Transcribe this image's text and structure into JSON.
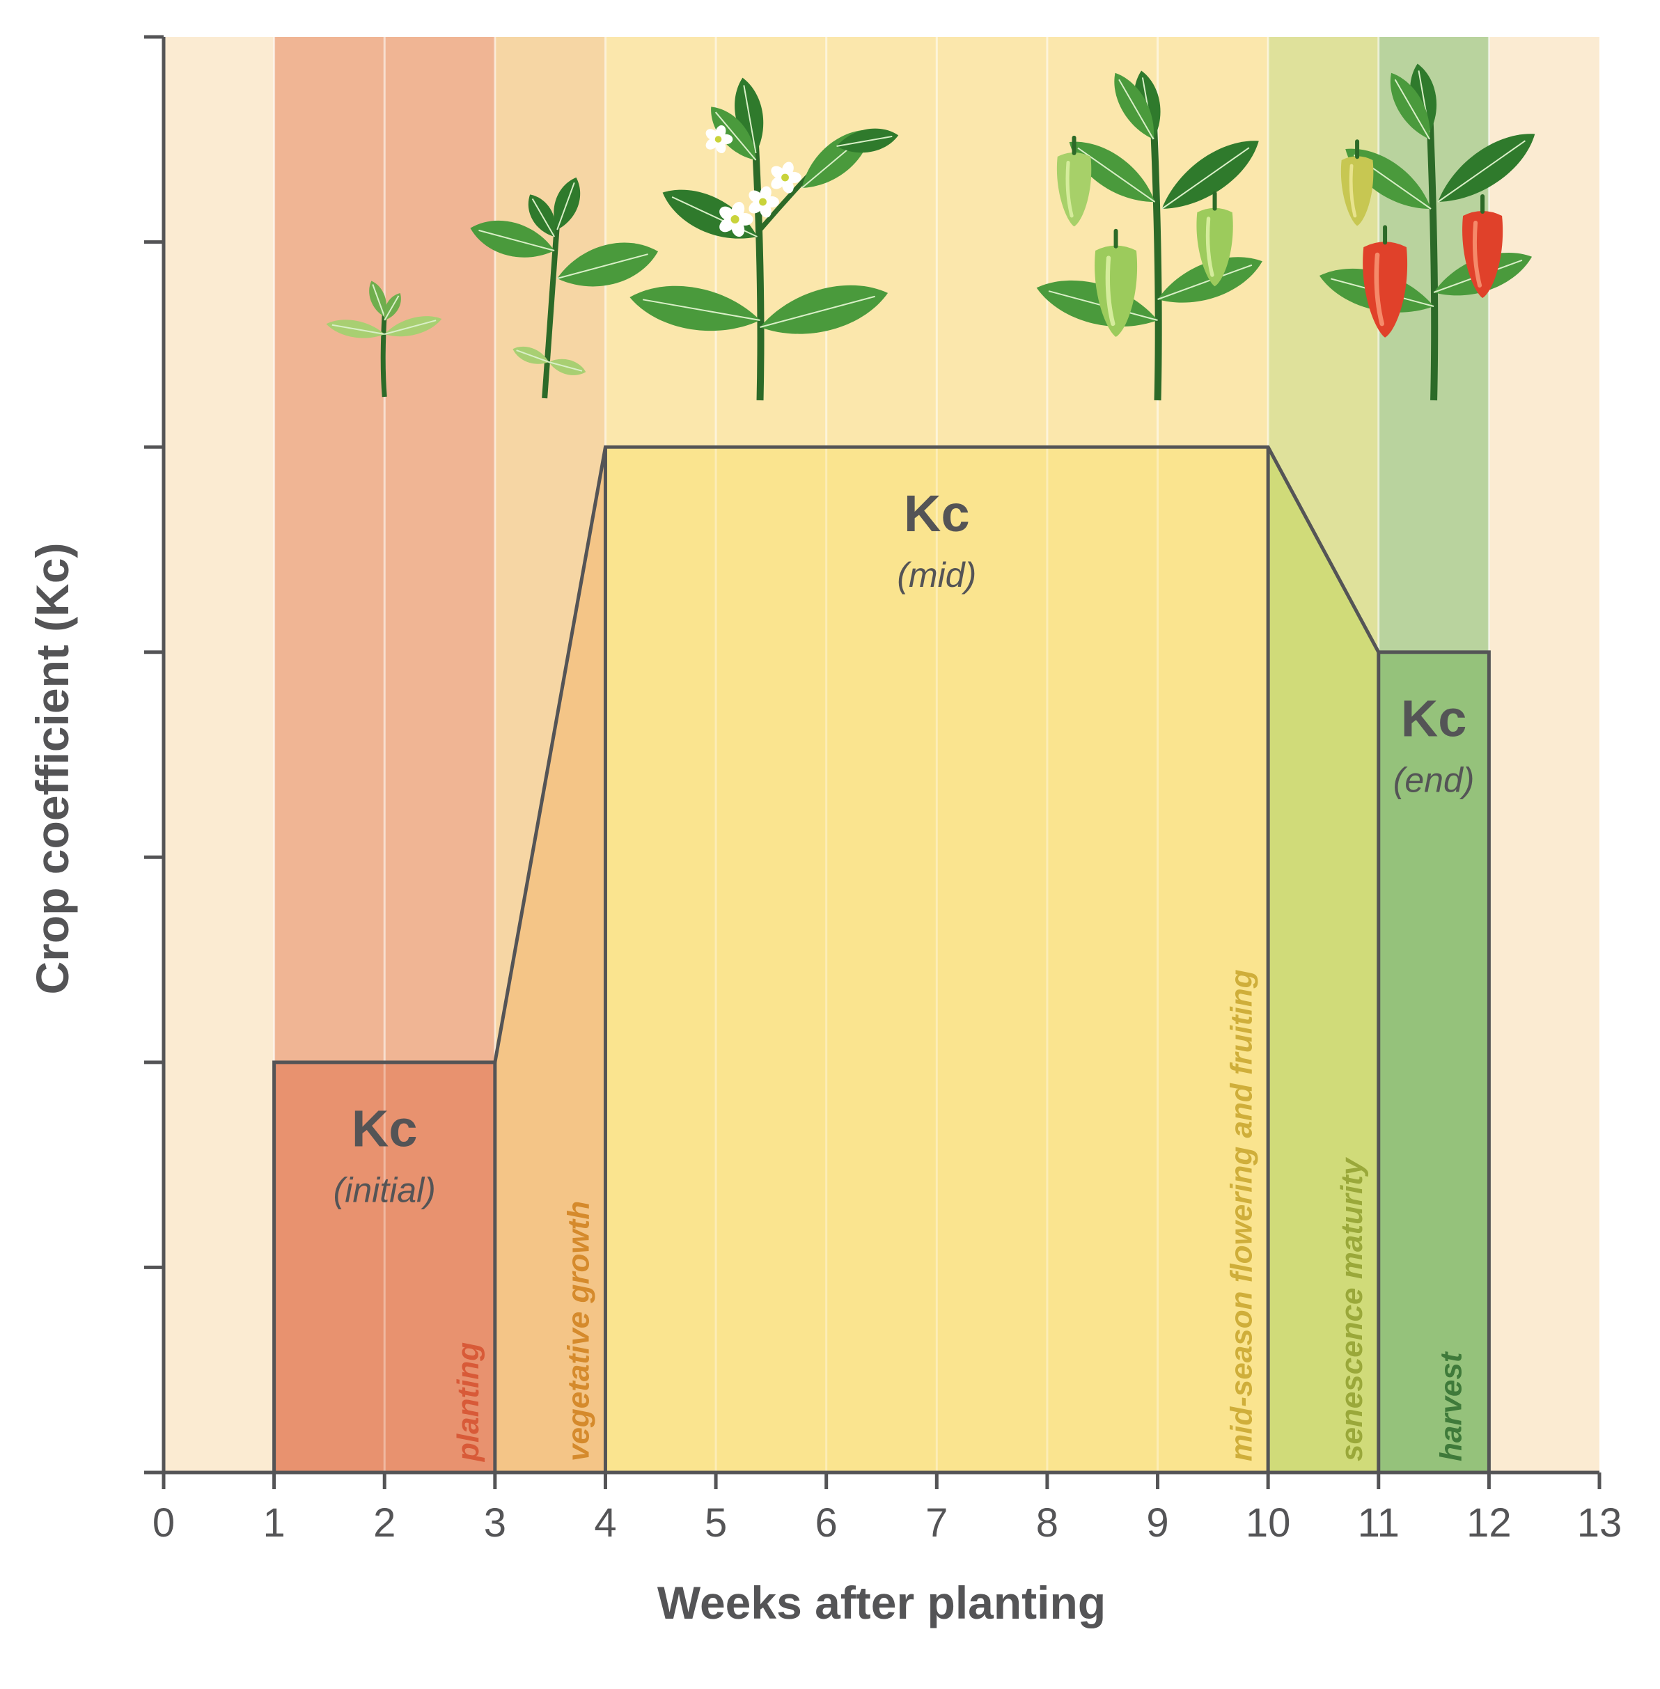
{
  "chart_data": {
    "type": "area",
    "title": "",
    "xlabel": "Weeks after planting",
    "ylabel": "Crop coefficient (Kc)",
    "xlim": [
      0,
      13
    ],
    "ylim": [
      0,
      7
    ],
    "x_ticks": [
      0,
      1,
      2,
      3,
      4,
      5,
      6,
      7,
      8,
      9,
      10,
      11,
      12,
      13
    ],
    "x_tick_labels": [
      "0",
      "1",
      "2",
      "3",
      "4",
      "5",
      "6",
      "7",
      "8",
      "9",
      "10",
      "11",
      "12",
      "13"
    ],
    "y_ticks": [
      0,
      1,
      2,
      3,
      4,
      5,
      6,
      7
    ],
    "y_tick_labels_shown": false,
    "kc_curve": {
      "x": [
        1,
        1,
        3,
        4,
        10,
        11,
        12,
        12
      ],
      "y": [
        0,
        2,
        2,
        5,
        5,
        4,
        4,
        0
      ]
    },
    "kc_labels": [
      {
        "main": "Kc",
        "sub": "(initial)",
        "x": 2,
        "y": 1.42
      },
      {
        "main": "Kc",
        "sub": "(mid)",
        "x": 7,
        "y": 4.42
      },
      {
        "main": "Kc",
        "sub": "(end)",
        "x": 11.5,
        "y": 3.42
      }
    ],
    "stages": [
      {
        "label": "planting",
        "x_start": 1,
        "x_end": 3,
        "fill": "#e8926f",
        "band": "#f0b594",
        "text_color": "#d85a38"
      },
      {
        "label": "vegetative growth",
        "x_start": 3,
        "x_end": 4,
        "fill": "#f4c587",
        "band": "#f6d6a4",
        "text_color": "#d58a2c"
      },
      {
        "label": "mid-season flowering and fruiting",
        "x_start": 4,
        "x_end": 10,
        "fill": "#fae48f",
        "band": "#fbe7ac",
        "text_color": "#cfae3a"
      },
      {
        "label": "senescence maturity",
        "x_start": 10,
        "x_end": 11,
        "fill": "#d0db79",
        "band": "#dfe19b",
        "text_color": "#9aa83a"
      },
      {
        "label": "harvest",
        "x_start": 11,
        "x_end": 12,
        "fill": "#95c27b",
        "band": "#b9d39e",
        "text_color": "#3f7a3a"
      }
    ],
    "background_color": "#fbebd2",
    "outline_color": "#545456",
    "illustrations": [
      {
        "name": "seedling-icon",
        "x": 2
      },
      {
        "name": "young-plant-icon",
        "x": 3.5
      },
      {
        "name": "flowering-plant-icon",
        "x": 5.4
      },
      {
        "name": "green-pepper-plant-icon",
        "x": 9
      },
      {
        "name": "ripe-pepper-plant-icon",
        "x": 11.5
      }
    ]
  }
}
